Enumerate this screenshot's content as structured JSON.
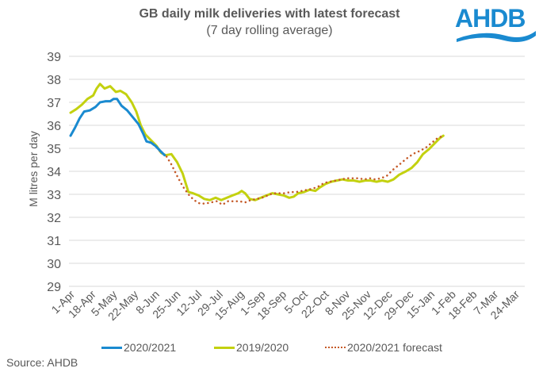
{
  "chart_data": {
    "type": "line",
    "title": "GB daily milk deliveries with latest forecast",
    "subtitle": "(7 day rolling average)",
    "xlabel": "",
    "ylabel": "M litres per day",
    "ylim": [
      29,
      39
    ],
    "yticks": [
      29,
      30,
      31,
      32,
      33,
      34,
      35,
      36,
      37,
      38,
      39
    ],
    "grid": true,
    "legend_position": "bottom",
    "x_tick_labels": [
      "1-Apr",
      "18-Apr",
      "5-May",
      "22-May",
      "8-Jun",
      "25-Jun",
      "12-Jul",
      "29-Jul",
      "15-Aug",
      "1-Sep",
      "18-Sep",
      "5-Oct",
      "22-Oct",
      "8-Nov",
      "25-Nov",
      "12-Dec",
      "29-Dec",
      "15-Jan",
      "1-Feb",
      "18-Feb",
      "7-Mar",
      "24-Mar"
    ],
    "x_unit": "day of year from 1-Apr (0-364)",
    "series": [
      {
        "name": "2020/2021",
        "color": "#1a8ad0",
        "style": "solid",
        "points": [
          [
            0,
            35.55
          ],
          [
            4,
            35.9
          ],
          [
            8,
            36.3
          ],
          [
            12,
            36.6
          ],
          [
            17,
            36.65
          ],
          [
            22,
            36.8
          ],
          [
            26,
            37.0
          ],
          [
            31,
            37.05
          ],
          [
            35,
            37.05
          ],
          [
            38,
            37.15
          ],
          [
            41,
            37.15
          ],
          [
            45,
            36.85
          ],
          [
            50,
            36.65
          ],
          [
            55,
            36.35
          ],
          [
            60,
            36.05
          ],
          [
            64,
            35.65
          ],
          [
            67,
            35.3
          ],
          [
            71,
            35.25
          ],
          [
            75,
            35.1
          ],
          [
            79,
            34.9
          ],
          [
            83,
            34.7
          ]
        ]
      },
      {
        "name": "2019/2020",
        "color": "#c3d10f",
        "style": "solid",
        "points": [
          [
            0,
            36.55
          ],
          [
            5,
            36.7
          ],
          [
            10,
            36.9
          ],
          [
            15,
            37.15
          ],
          [
            20,
            37.3
          ],
          [
            23,
            37.6
          ],
          [
            26,
            37.8
          ],
          [
            30,
            37.6
          ],
          [
            35,
            37.7
          ],
          [
            40,
            37.45
          ],
          [
            44,
            37.5
          ],
          [
            49,
            37.35
          ],
          [
            54,
            37.0
          ],
          [
            58,
            36.6
          ],
          [
            62,
            36.0
          ],
          [
            66,
            35.6
          ],
          [
            71,
            35.35
          ],
          [
            76,
            35.1
          ],
          [
            80,
            34.8
          ],
          [
            84,
            34.7
          ],
          [
            89,
            34.75
          ],
          [
            94,
            34.4
          ],
          [
            99,
            33.9
          ],
          [
            104,
            33.1
          ],
          [
            108,
            33.05
          ],
          [
            113,
            32.95
          ],
          [
            118,
            32.8
          ],
          [
            123,
            32.75
          ],
          [
            128,
            32.85
          ],
          [
            133,
            32.75
          ],
          [
            138,
            32.85
          ],
          [
            143,
            32.95
          ],
          [
            148,
            33.05
          ],
          [
            151,
            33.15
          ],
          [
            154,
            33.05
          ],
          [
            158,
            32.8
          ],
          [
            163,
            32.75
          ],
          [
            168,
            32.85
          ],
          [
            173,
            32.95
          ],
          [
            178,
            33.05
          ],
          [
            183,
            33.0
          ],
          [
            188,
            32.95
          ],
          [
            193,
            32.85
          ],
          [
            197,
            32.9
          ],
          [
            201,
            33.05
          ],
          [
            206,
            33.1
          ],
          [
            211,
            33.2
          ],
          [
            216,
            33.15
          ],
          [
            220,
            33.3
          ],
          [
            225,
            33.45
          ],
          [
            230,
            33.55
          ],
          [
            235,
            33.6
          ],
          [
            240,
            33.65
          ],
          [
            245,
            33.6
          ],
          [
            250,
            33.6
          ],
          [
            255,
            33.55
          ],
          [
            260,
            33.6
          ],
          [
            265,
            33.6
          ],
          [
            270,
            33.55
          ],
          [
            275,
            33.6
          ],
          [
            280,
            33.55
          ],
          [
            285,
            33.65
          ],
          [
            290,
            33.85
          ],
          [
            296,
            34.0
          ],
          [
            301,
            34.15
          ],
          [
            306,
            34.4
          ],
          [
            311,
            34.75
          ],
          [
            316,
            34.95
          ],
          [
            321,
            35.2
          ],
          [
            326,
            35.45
          ],
          [
            329,
            35.55
          ]
        ]
      },
      {
        "name": "2020/2021 forecast",
        "color": "#c55a28",
        "style": "dotted",
        "points": [
          [
            70,
            35.25
          ],
          [
            75,
            35.1
          ],
          [
            80,
            34.8
          ],
          [
            84,
            34.7
          ],
          [
            89,
            34.3
          ],
          [
            94,
            33.8
          ],
          [
            99,
            33.35
          ],
          [
            104,
            33.0
          ],
          [
            109,
            32.75
          ],
          [
            114,
            32.6
          ],
          [
            119,
            32.6
          ],
          [
            124,
            32.65
          ],
          [
            129,
            32.7
          ],
          [
            134,
            32.55
          ],
          [
            139,
            32.7
          ],
          [
            144,
            32.7
          ],
          [
            149,
            32.7
          ],
          [
            154,
            32.65
          ],
          [
            159,
            32.75
          ],
          [
            164,
            32.8
          ],
          [
            169,
            32.85
          ],
          [
            174,
            32.95
          ],
          [
            179,
            33.05
          ],
          [
            184,
            33.05
          ],
          [
            189,
            33.05
          ],
          [
            194,
            33.1
          ],
          [
            199,
            33.1
          ],
          [
            204,
            33.15
          ],
          [
            209,
            33.2
          ],
          [
            214,
            33.25
          ],
          [
            219,
            33.35
          ],
          [
            224,
            33.5
          ],
          [
            229,
            33.55
          ],
          [
            234,
            33.6
          ],
          [
            239,
            33.65
          ],
          [
            244,
            33.7
          ],
          [
            249,
            33.7
          ],
          [
            254,
            33.7
          ],
          [
            259,
            33.65
          ],
          [
            264,
            33.7
          ],
          [
            269,
            33.65
          ],
          [
            274,
            33.7
          ],
          [
            279,
            33.8
          ],
          [
            284,
            34.05
          ],
          [
            289,
            34.25
          ],
          [
            294,
            34.45
          ],
          [
            299,
            34.65
          ],
          [
            304,
            34.8
          ],
          [
            309,
            34.9
          ],
          [
            314,
            35.05
          ],
          [
            319,
            35.25
          ],
          [
            324,
            35.45
          ],
          [
            329,
            35.55
          ]
        ]
      }
    ]
  },
  "logo": {
    "text": "AHDB"
  },
  "legend": [
    {
      "label": "2020/2021"
    },
    {
      "label": "2019/2020"
    },
    {
      "label": "2020/2021 forecast"
    }
  ],
  "source": "Source: AHDB"
}
